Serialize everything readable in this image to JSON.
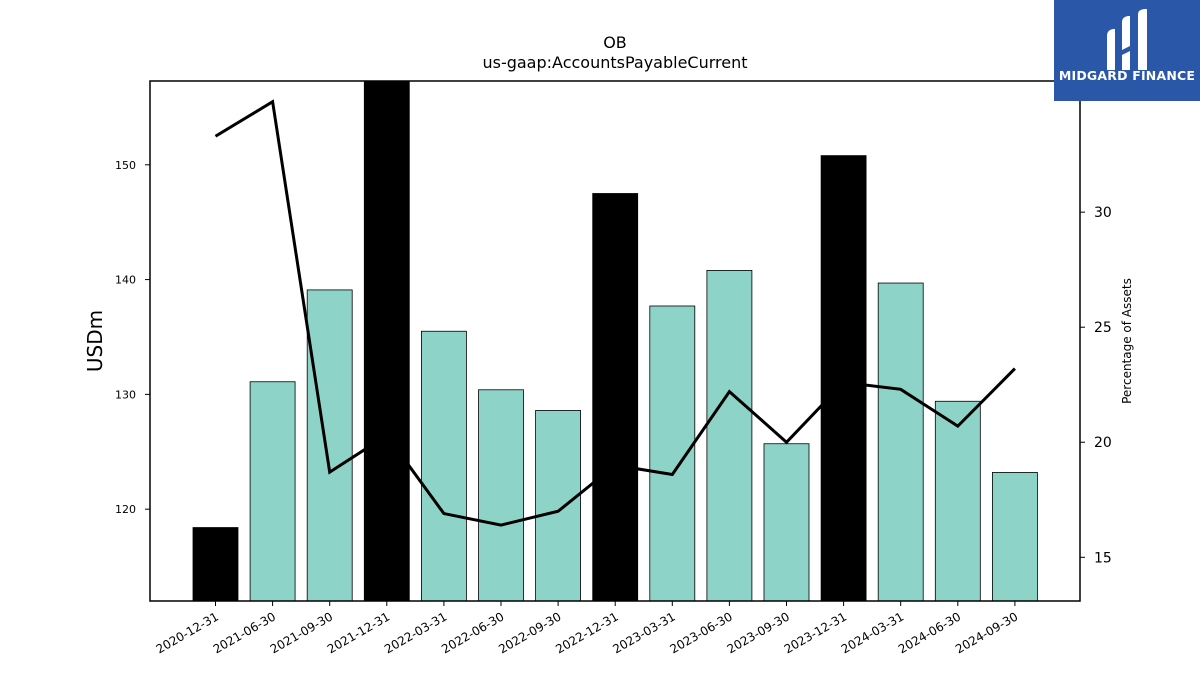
{
  "chart_data": {
    "type": "bar",
    "title": "OB",
    "subtitle": "us-gaap:AccountsPayableCurrent",
    "ylabel": "USDm",
    "y2label": "Percentage of Assets",
    "categories": [
      "2020-12-31",
      "2021-06-30",
      "2021-09-30",
      "2021-12-31",
      "2022-03-31",
      "2022-06-30",
      "2022-09-30",
      "2022-12-31",
      "2023-03-31",
      "2023-06-30",
      "2023-09-30",
      "2023-12-31",
      "2024-03-31",
      "2024-06-30",
      "2024-09-30"
    ],
    "series": [
      {
        "values": [
          118.4,
          131.1,
          139.1,
          157.3,
          135.5,
          130.4,
          128.6,
          147.5,
          137.7,
          140.8,
          125.7,
          150.8,
          139.7,
          129.4,
          123.2
        ],
        "colors": [
          "#000000",
          "#8dd3c7",
          "#8dd3c7",
          "#000000",
          "#8dd3c7",
          "#8dd3c7",
          "#8dd3c7",
          "#000000",
          "#8dd3c7",
          "#8dd3c7",
          "#8dd3c7",
          "#000000",
          "#8dd3c7",
          "#8dd3c7",
          "#8dd3c7"
        ]
      },
      {
        "type": "line",
        "axis": "right",
        "color": "#000000",
        "values": [
          33.3,
          34.8,
          18.7,
          20.3,
          16.9,
          16.4,
          17.0,
          19.0,
          18.6,
          22.2,
          20.0,
          22.6,
          22.3,
          20.7,
          23.2
        ]
      }
    ],
    "ylim": [
      112,
      157.3
    ],
    "y2lim": [
      13.1,
      35.7
    ],
    "yticks": [
      120,
      130,
      140,
      150
    ],
    "y2ticks": [
      15,
      20,
      25,
      30
    ],
    "grid": false
  },
  "logo": {
    "text": "MIDGARD FINANCE",
    "bg": "#2b57a8",
    "fg": "#ffffff"
  }
}
